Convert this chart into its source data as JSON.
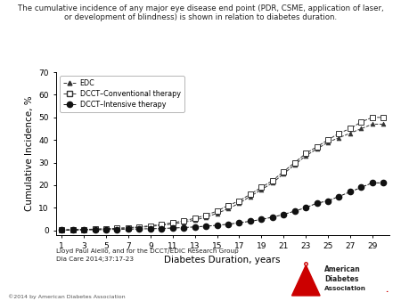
{
  "title_line1": "The cumulative incidence of any major eye disease end point (PDR, CSME, application of laser,",
  "title_line2": "or development of blindness) is shown in relation to diabetes duration.",
  "xlabel": "Diabetes Duration, years",
  "ylabel": "Cumulative Incidence, %",
  "ylim": [
    -2,
    70
  ],
  "yticks": [
    0,
    10,
    20,
    30,
    40,
    50,
    60,
    70
  ],
  "xticks": [
    1,
    3,
    5,
    7,
    9,
    11,
    13,
    15,
    17,
    19,
    21,
    23,
    25,
    27,
    29
  ],
  "footnote1": "Lloyd Paul Aiello, and for the DCCT/EDIC Research Group",
  "footnote2": "Dia Care 2014;37:17-23",
  "copyright": "©2014 by American Diabetes Association",
  "edc_x": [
    1,
    2,
    3,
    4,
    5,
    6,
    7,
    8,
    9,
    10,
    11,
    12,
    13,
    14,
    15,
    16,
    17,
    18,
    19,
    20,
    21,
    22,
    23,
    24,
    25,
    26,
    27,
    28,
    29,
    30
  ],
  "edc_y": [
    0.2,
    0.3,
    0.4,
    0.5,
    0.6,
    0.8,
    1.0,
    1.3,
    1.7,
    2.2,
    2.8,
    3.5,
    4.5,
    5.8,
    7.5,
    9.5,
    12,
    15,
    18,
    21,
    25,
    29,
    33,
    36,
    39,
    41,
    43,
    45,
    47,
    47
  ],
  "conv_x": [
    1,
    2,
    3,
    4,
    5,
    6,
    7,
    8,
    9,
    10,
    11,
    12,
    13,
    14,
    15,
    16,
    17,
    18,
    19,
    20,
    21,
    22,
    23,
    24,
    25,
    26,
    27,
    28,
    29,
    30
  ],
  "conv_y": [
    0.1,
    0.2,
    0.3,
    0.5,
    0.7,
    0.9,
    1.2,
    1.5,
    2.0,
    2.6,
    3.3,
    4.2,
    5.3,
    6.7,
    8.5,
    11,
    13,
    16,
    19,
    22,
    26,
    30,
    34,
    37,
    40,
    43,
    45,
    48,
    50,
    50
  ],
  "int_x": [
    1,
    2,
    3,
    4,
    5,
    6,
    7,
    8,
    9,
    10,
    11,
    12,
    13,
    14,
    15,
    16,
    17,
    18,
    19,
    20,
    21,
    22,
    23,
    24,
    25,
    26,
    27,
    28,
    29,
    30
  ],
  "int_y": [
    0.1,
    0.1,
    0.2,
    0.2,
    0.3,
    0.4,
    0.5,
    0.6,
    0.7,
    0.8,
    1.0,
    1.2,
    1.5,
    1.8,
    2.2,
    2.7,
    3.3,
    4.0,
    4.8,
    5.8,
    7.0,
    8.5,
    10,
    12,
    13,
    15,
    17,
    19,
    21,
    21
  ],
  "edc_color": "#333333",
  "conv_color": "#333333",
  "int_color": "#111111",
  "bg_color": "#ffffff"
}
